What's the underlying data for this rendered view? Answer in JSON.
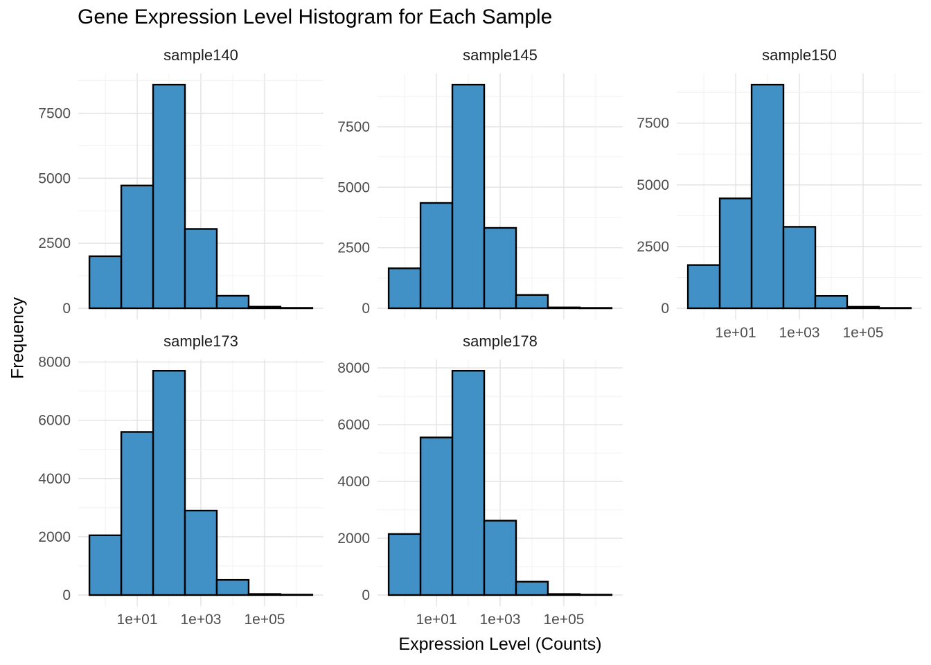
{
  "chart_data": {
    "type": "bar",
    "subtype": "faceted-histogram",
    "title": "Gene Expression Level Histogram for Each Sample",
    "xlabel": "Expression Level (Counts)",
    "ylabel": "Frequency",
    "x_scale": "log10",
    "grid": true,
    "legend": "none",
    "x_ticks": [
      {
        "log10": 1,
        "label": "1e+01"
      },
      {
        "log10": 3,
        "label": "1e+03"
      },
      {
        "log10": 5,
        "label": "1e+05"
      }
    ],
    "x_minor_log10": [
      0,
      2,
      4,
      6
    ],
    "bin_log10_centers": [
      0,
      1,
      2,
      3,
      4,
      5,
      6
    ],
    "bin_width_decades": 1,
    "y_axis_expansion": 0.05,
    "facets": [
      {
        "name": "sample140",
        "row": 0,
        "col": 0,
        "show_x_axis": false,
        "y_ticks": [
          0,
          2500,
          5000,
          7500
        ],
        "values": [
          2000,
          4720,
          8600,
          3050,
          480,
          60,
          15
        ]
      },
      {
        "name": "sample145",
        "row": 0,
        "col": 1,
        "show_x_axis": false,
        "y_ticks": [
          0,
          2500,
          5000,
          7500
        ],
        "values": [
          1650,
          4350,
          9240,
          3320,
          550,
          35,
          15
        ]
      },
      {
        "name": "sample150",
        "row": 0,
        "col": 2,
        "show_x_axis": true,
        "y_ticks": [
          0,
          2500,
          5000,
          7500
        ],
        "values": [
          1750,
          4450,
          9060,
          3300,
          500,
          60,
          15
        ]
      },
      {
        "name": "sample173",
        "row": 1,
        "col": 0,
        "show_x_axis": true,
        "y_ticks": [
          0,
          2000,
          4000,
          6000,
          8000
        ],
        "values": [
          2050,
          5600,
          7700,
          2900,
          520,
          35,
          15
        ]
      },
      {
        "name": "sample178",
        "row": 1,
        "col": 1,
        "show_x_axis": true,
        "y_ticks": [
          0,
          2000,
          4000,
          6000,
          8000
        ],
        "values": [
          2150,
          5550,
          7900,
          2620,
          470,
          35,
          15
        ]
      }
    ],
    "colors": {
      "bar_fill": "#4191C6",
      "bar_stroke": "#000000",
      "grid_major": "#E4E4E4",
      "grid_minor": "#F1F1F1",
      "tick_label": "#4D4D4D",
      "text": "#1A1A1A",
      "background": "#FFFFFF"
    }
  }
}
